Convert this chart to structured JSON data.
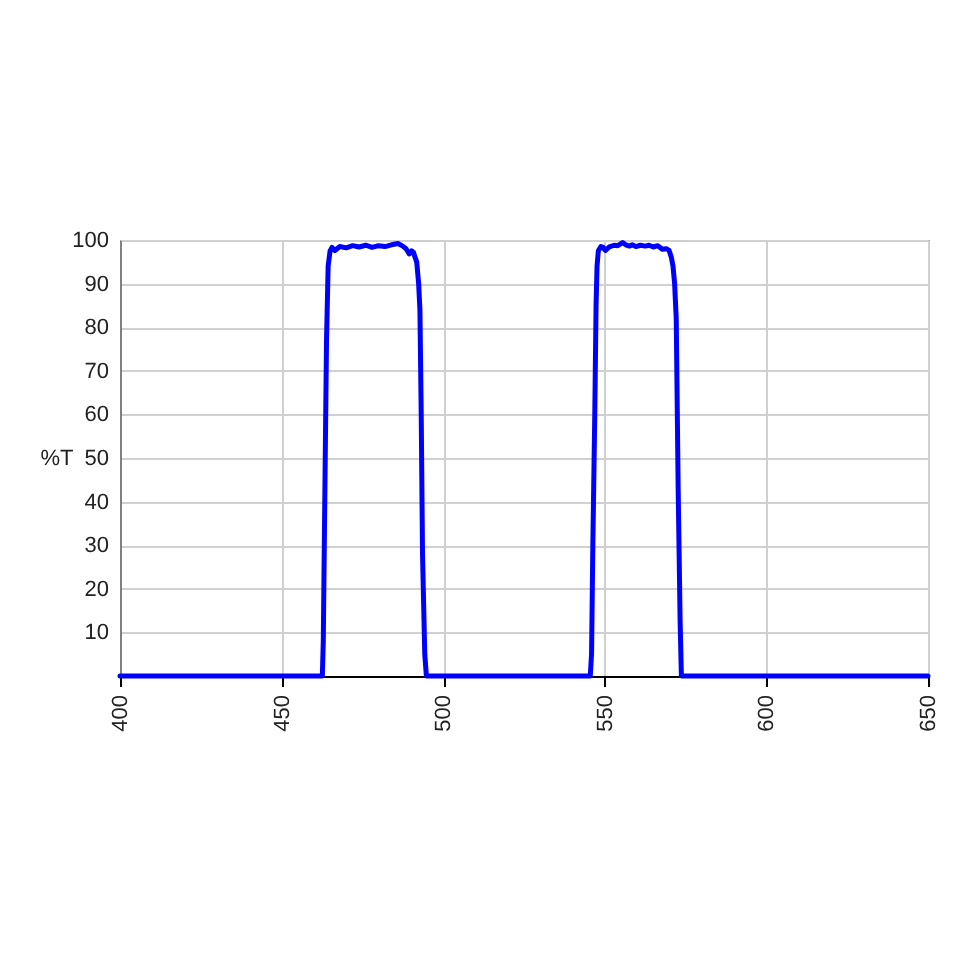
{
  "chart_data": {
    "type": "line",
    "ylabel": "%T",
    "x": [
      400,
      462.6,
      462.9,
      463.4,
      463.9,
      464.4,
      465,
      465.6,
      466.5,
      468,
      470,
      472,
      474,
      476,
      478,
      480,
      482,
      484,
      486,
      487.5,
      488.5,
      489.5,
      490.2,
      490.8,
      491.3,
      491.8,
      492.4,
      492.8,
      493.2,
      493.6,
      494.3,
      494.8,
      545.5,
      545.9,
      546.3,
      546.9,
      547.3,
      547.6,
      548,
      548.8,
      549.5,
      550.2,
      551.4,
      552.9,
      554,
      555.5,
      556.5,
      557.6,
      558.5,
      559.6,
      561,
      562.5,
      563.7,
      565,
      566.4,
      567.8,
      569,
      569.9,
      570.6,
      571.1,
      571.6,
      572.1,
      572.7,
      573.3,
      573.7,
      650
    ],
    "series": [
      {
        "color": "#0000ff",
        "values": [
          0,
          0,
          8,
          43,
          77,
          94,
          97.5,
          98.3,
          97.6,
          98.5,
          98.2,
          98.7,
          98.4,
          98.8,
          98.3,
          98.7,
          98.5,
          98.9,
          99.2,
          98.6,
          98,
          96.8,
          97.5,
          97.2,
          96,
          95,
          90,
          84,
          60,
          28,
          5,
          0,
          0,
          5,
          30,
          60,
          85,
          94,
          97.5,
          98.5,
          98.3,
          97.6,
          98.4,
          98.8,
          98.7,
          99.4,
          98.9,
          98.6,
          98.9,
          98.5,
          98.8,
          98.6,
          98.8,
          98.4,
          98.7,
          97.9,
          98,
          97.6,
          96,
          94,
          90,
          82,
          43,
          12.7,
          0,
          0
        ]
      }
    ],
    "xlim": [
      400,
      650
    ],
    "ylim": [
      0,
      100
    ],
    "xticks": [
      400,
      450,
      500,
      550,
      600,
      650
    ],
    "yticks": [
      10,
      20,
      30,
      40,
      50,
      60,
      70,
      80,
      90,
      100
    ],
    "grid": true
  }
}
